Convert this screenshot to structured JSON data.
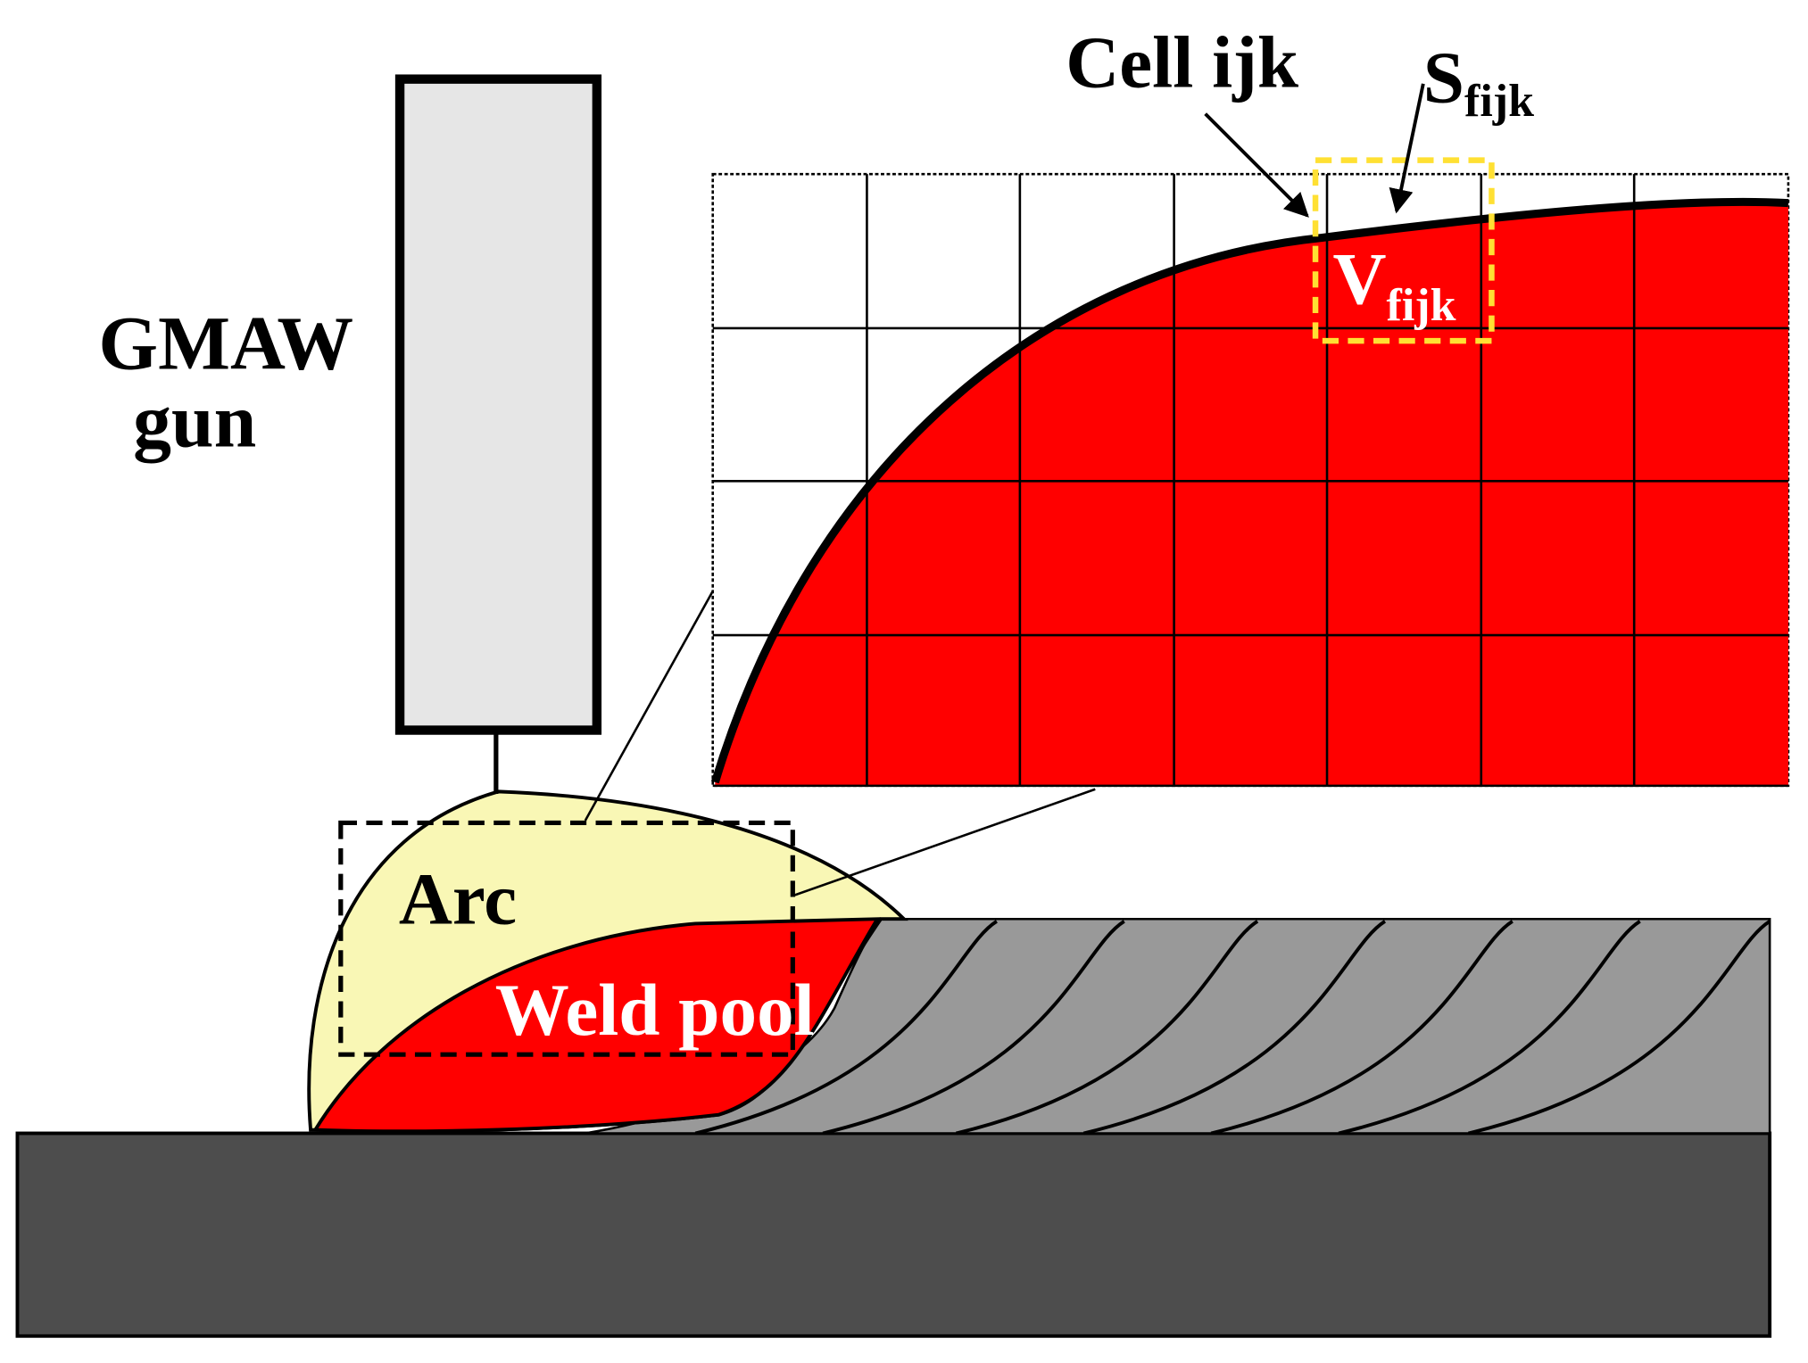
{
  "gun_label": {
    "line1": "GMAW",
    "line2": "gun"
  },
  "arc_label": "Arc",
  "weld_pool_label": "Weld pool",
  "inset": {
    "cell_label": "Cell ijk",
    "surface_label": {
      "symbol": "S",
      "subscript": "fijk"
    },
    "volume_label": {
      "symbol": "V",
      "subscript": "fijk"
    }
  }
}
